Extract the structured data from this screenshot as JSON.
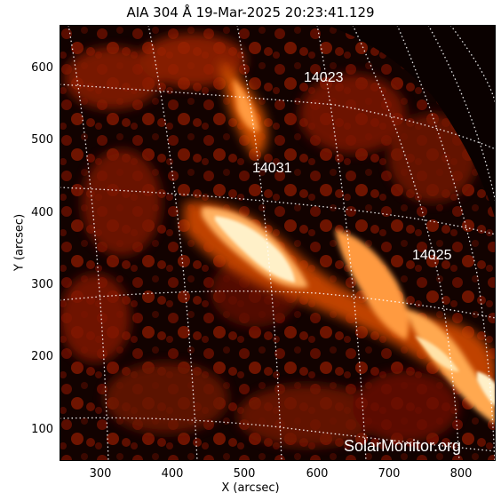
{
  "header": {
    "title": "AIA 304 Å 19-Mar-2025 20:23:41.129"
  },
  "axes": {
    "xlabel": "X (arcsec)",
    "ylabel": "Y (arcsec)",
    "xticks": [
      "300",
      "400",
      "500",
      "600",
      "700",
      "800"
    ],
    "yticks": [
      "600",
      "500",
      "400",
      "300",
      "200",
      "100"
    ]
  },
  "regions": [
    {
      "id": "14023",
      "label": "14023"
    },
    {
      "id": "14031",
      "label": "14031"
    },
    {
      "id": "14025",
      "label": "14025"
    }
  ],
  "watermark": "SolarMonitor.org",
  "colors": {
    "background": "#000000",
    "emission_dim": "#6e1000",
    "emission_mid": "#c84600",
    "emission_bright": "#ffe8b0",
    "grid": "#ffffff"
  }
}
